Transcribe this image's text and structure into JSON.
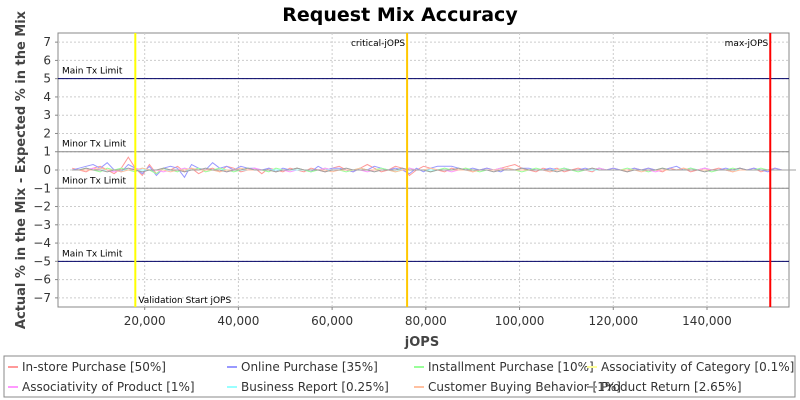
{
  "chart_data": {
    "type": "line",
    "title": "Request Mix Accuracy",
    "xlabel": "jOPS",
    "ylabel": "Actual % in the Mix - Expected % in the Mix",
    "xlim": [
      1500,
      157500
    ],
    "ylim": [
      -7.5,
      7.5
    ],
    "xticks": [
      20000,
      40000,
      60000,
      80000,
      100000,
      120000,
      140000
    ],
    "xtick_labels": [
      "20,000",
      "40,000",
      "60,000",
      "80,000",
      "100,000",
      "120,000",
      "140,000"
    ],
    "yticks": [
      7,
      6,
      5,
      4,
      3,
      2,
      1,
      0,
      -1,
      -2,
      -3,
      -4,
      -5,
      -6,
      -7
    ],
    "ytick_labels": [
      "7",
      "6",
      "5",
      "4",
      "3",
      "2",
      "1",
      "0",
      "−1",
      "−2",
      "−3",
      "−4",
      "−5",
      "−6",
      "−7"
    ],
    "grid": true,
    "legend_position": "bottom",
    "horizontal_lines": [
      {
        "label": "Main Tx Limit",
        "y": 5,
        "color": "#000066"
      },
      {
        "label": "Minor Tx Limit",
        "y": 1,
        "color": "#888888"
      },
      {
        "label": "Minor Tx Limit",
        "y": -1,
        "color": "#888888"
      },
      {
        "label": "Main Tx Limit",
        "y": -5,
        "color": "#000066"
      }
    ],
    "vertical_lines": [
      {
        "label": "Validation Start jOPS",
        "x": 18000,
        "color": "#ffff00"
      },
      {
        "label": "critical-jOPS",
        "x": 76000,
        "color": "#ffc800"
      },
      {
        "label": "max-jOPS",
        "x": 153500,
        "color": "#ff0000"
      }
    ],
    "x_start": 4500,
    "x_step": 1500,
    "series": [
      {
        "name": "In-store Purchase [50%]",
        "color": "#ff9999",
        "values": [
          0.1,
          0.0,
          -0.1,
          0.1,
          0.2,
          0.0,
          -0.2,
          0.1,
          0.7,
          0.1,
          -0.3,
          0.3,
          -0.2,
          0.1,
          0.0,
          0.2,
          -0.1,
          0.1,
          -0.2,
          0.0,
          0.1,
          -0.1,
          0.2,
          0.1,
          -0.1,
          0.0,
          0.1,
          -0.2,
          0.1,
          0.0,
          -0.1,
          0.1,
          0.0,
          -0.1,
          0.1,
          0.0,
          -0.1,
          0.1,
          0.2,
          0.0,
          -0.1,
          0.1,
          0.3,
          0.1,
          -0.1,
          0.0,
          0.2,
          0.1,
          -0.3,
          0.0,
          0.2,
          0.1,
          0.0,
          -0.1,
          0.1,
          0.0,
          0.1,
          -0.1,
          0.0,
          0.1,
          0.0,
          0.1,
          0.2,
          0.3,
          0.1,
          0.0,
          -0.1,
          0.1,
          0.0,
          0.1,
          -0.1,
          0.0,
          0.1,
          0.0,
          -0.1,
          0.1,
          0.0,
          0.1,
          0.0,
          -0.1,
          0.1,
          0.0,
          0.1,
          0.0,
          -0.1,
          0.1,
          0.0,
          0.1,
          -0.1,
          0.0,
          0.1,
          0.0,
          0.1,
          0.0,
          -0.1,
          0.1,
          0.0,
          0.1,
          -0.1,
          0.0,
          0.1,
          0.0,
          0.0
        ]
      },
      {
        "name": "Online Purchase [35%]",
        "color": "#9999ff",
        "values": [
          0.0,
          0.1,
          0.2,
          0.3,
          0.1,
          0.4,
          0.0,
          -0.1,
          0.3,
          0.1,
          -0.2,
          0.2,
          -0.3,
          0.1,
          0.2,
          0.1,
          -0.4,
          0.3,
          0.1,
          0.0,
          0.4,
          0.1,
          0.2,
          0.0,
          0.2,
          0.1,
          0.1,
          0.0,
          0.1,
          -0.1,
          0.1,
          0.0,
          0.1,
          0.0,
          -0.1,
          0.2,
          0.0,
          0.1,
          0.1,
          0.0,
          -0.1,
          0.1,
          0.0,
          0.2,
          0.1,
          0.0,
          0.1,
          0.0,
          -0.2,
          0.1,
          -0.1,
          0.1,
          0.2,
          0.2,
          0.2,
          0.1,
          0.0,
          0.1,
          0.0,
          0.1,
          0.0,
          -0.1,
          0.1,
          0.0,
          0.1,
          0.1,
          0.0,
          0.0,
          0.1,
          0.0,
          0.1,
          0.0,
          0.0,
          0.1,
          0.0,
          0.1,
          0.0,
          0.1,
          0.0,
          0.0,
          0.1,
          0.0,
          0.1,
          0.0,
          0.0,
          0.1,
          0.2,
          0.0,
          0.1,
          0.0,
          0.1,
          0.0,
          0.0,
          0.1,
          0.0,
          0.1,
          0.0,
          0.1,
          0.0,
          -0.1,
          0.1,
          0.0,
          0.0
        ]
      },
      {
        "name": "Installment Purchase [10%]",
        "color": "#99ff99",
        "values": [
          0.0,
          0.0,
          0.1,
          0.0,
          -0.1,
          0.1,
          0.0,
          0.1,
          0.0,
          -0.1,
          0.1,
          0.0,
          -0.2,
          0.1,
          0.0,
          -0.1,
          0.1,
          0.0,
          0.1,
          -0.1,
          0.0,
          0.1,
          0.0,
          -0.1,
          0.0,
          0.1,
          0.0,
          0.0,
          -0.1,
          0.1,
          0.0,
          0.0,
          0.1,
          0.0,
          -0.1,
          0.0,
          0.1,
          0.0,
          0.0,
          -0.1,
          0.0,
          0.1,
          0.0,
          0.0,
          0.1,
          0.0,
          -0.1,
          0.0,
          0.1,
          0.0,
          0.0,
          -0.1,
          0.0,
          0.1,
          0.0,
          0.0,
          0.1,
          0.0,
          -0.1,
          0.0,
          0.0,
          0.1,
          0.0,
          0.0,
          -0.1,
          0.0,
          0.1,
          0.0,
          0.0,
          0.0,
          0.1,
          0.0,
          -0.1,
          0.0,
          0.0,
          0.1,
          0.0,
          0.0,
          0.0,
          0.1,
          0.0,
          0.0,
          -0.1,
          0.0,
          0.1,
          0.0,
          0.0,
          0.0,
          0.1,
          0.0,
          0.0,
          -0.1,
          0.0,
          0.0,
          0.1,
          0.0,
          0.0,
          0.0,
          0.1,
          0.0,
          0.0,
          0.0,
          0.0
        ]
      },
      {
        "name": "Associativity of Category [0.1%]",
        "color": "#ffff99",
        "values": [
          0.0,
          0.0,
          0.0,
          0.0,
          0.0,
          0.0,
          0.0,
          0.0,
          0.0,
          0.0,
          0.0,
          0.0,
          0.0,
          0.0,
          0.0,
          0.0,
          0.0,
          0.0,
          0.0,
          0.0,
          0.0,
          0.0,
          0.0,
          0.0,
          0.0,
          0.0,
          0.0,
          0.0,
          0.0,
          0.0,
          0.0,
          0.0,
          0.0,
          0.0,
          0.0,
          0.0,
          0.0,
          0.0,
          0.0,
          0.0,
          0.0,
          0.0,
          0.0,
          0.0,
          0.0,
          0.0,
          0.0,
          0.0,
          0.0,
          0.0,
          0.0,
          0.0,
          0.0,
          0.0,
          0.0,
          0.0,
          0.0,
          0.0,
          0.0,
          0.0,
          0.0,
          0.0,
          0.0,
          0.0,
          0.0,
          0.0,
          0.0,
          0.0,
          0.0,
          0.0,
          0.0,
          0.0,
          0.0,
          0.0,
          0.0,
          0.0,
          0.0,
          0.0,
          0.0,
          0.0,
          0.0,
          0.0,
          0.0,
          0.0,
          0.0,
          0.0,
          0.0,
          0.0,
          0.0,
          0.0,
          0.0,
          0.0,
          0.0,
          0.0,
          0.0,
          0.0,
          0.0,
          0.0,
          0.0,
          0.0,
          0.0,
          0.0,
          0.0
        ]
      },
      {
        "name": "Associativity of Product [1%]",
        "color": "#ff99ff",
        "values": [
          0.0,
          0.0,
          0.0,
          0.1,
          0.0,
          0.0,
          -0.1,
          0.0,
          0.0,
          0.1,
          0.0,
          0.0,
          0.0,
          -0.1,
          0.0,
          0.0,
          0.1,
          0.0,
          0.0,
          0.0,
          0.0,
          0.0,
          -0.1,
          0.0,
          0.0,
          0.0,
          0.1,
          0.0,
          0.0,
          0.0,
          0.0,
          -0.1,
          0.0,
          0.0,
          0.0,
          0.0,
          0.1,
          0.0,
          0.0,
          0.0,
          0.0,
          0.0,
          -0.1,
          0.0,
          0.0,
          0.0,
          0.0,
          0.0,
          0.1,
          0.0,
          0.0,
          0.0,
          0.0,
          0.0,
          -0.1,
          0.0,
          0.0,
          0.0,
          0.0,
          0.0,
          0.0,
          0.1,
          0.0,
          0.0,
          0.0,
          0.0,
          0.0,
          0.0,
          -0.1,
          0.0,
          0.0,
          0.0,
          0.0,
          0.0,
          0.0,
          0.1,
          0.0,
          0.0,
          0.0,
          0.0,
          0.0,
          0.0,
          0.0,
          -0.1,
          0.0,
          0.0,
          0.0,
          0.0,
          0.0,
          0.0,
          0.1,
          0.0,
          0.0,
          0.0,
          0.0,
          0.0,
          0.0,
          0.0,
          0.0,
          0.0,
          0.0,
          0.0,
          0.0,
          0.0
        ]
      },
      {
        "name": "Business Report [0.25%]",
        "color": "#99ffff",
        "values": [
          0.0,
          0.0,
          0.0,
          0.0,
          0.0,
          0.0,
          0.0,
          0.0,
          0.0,
          0.0,
          0.0,
          0.0,
          0.0,
          0.0,
          0.0,
          0.0,
          0.0,
          0.0,
          0.0,
          0.0,
          0.0,
          0.0,
          0.0,
          0.0,
          0.0,
          0.0,
          0.0,
          0.0,
          0.0,
          0.0,
          0.0,
          0.0,
          0.0,
          0.0,
          0.0,
          0.0,
          0.0,
          0.0,
          0.0,
          0.0,
          0.0,
          0.0,
          0.0,
          0.0,
          0.0,
          0.0,
          0.0,
          0.0,
          0.0,
          0.0,
          0.0,
          0.0,
          0.0,
          0.0,
          0.0,
          0.0,
          0.0,
          0.0,
          0.0,
          0.0,
          0.0,
          0.0,
          0.0,
          0.0,
          0.0,
          0.0,
          0.0,
          0.0,
          0.0,
          0.0,
          0.0,
          0.0,
          0.0,
          0.0,
          0.0,
          0.0,
          0.0,
          0.0,
          0.0,
          0.0,
          0.0,
          0.0,
          0.0,
          0.0,
          0.0,
          0.0,
          0.0,
          0.0,
          0.0,
          0.0,
          0.0,
          0.0,
          0.0,
          0.0,
          0.0,
          0.0,
          0.0,
          0.0,
          0.0,
          0.0,
          0.0,
          0.0,
          0.0
        ]
      },
      {
        "name": "Customer Buying Behavior [1%]",
        "color": "#ffc0a0",
        "values": [
          0.0,
          0.0,
          0.0,
          0.0,
          0.1,
          0.0,
          0.0,
          -0.1,
          0.0,
          0.0,
          0.1,
          0.0,
          0.0,
          0.0,
          -0.1,
          0.0,
          0.0,
          0.1,
          0.0,
          0.0,
          0.0,
          -0.1,
          0.0,
          0.0,
          0.1,
          0.0,
          0.0,
          0.0,
          0.0,
          -0.1,
          0.0,
          0.0,
          0.1,
          0.0,
          0.0,
          0.0,
          0.0,
          -0.1,
          0.0,
          0.0,
          0.0,
          0.1,
          0.0,
          0.0,
          0.0,
          0.0,
          -0.1,
          0.0,
          0.0,
          0.0,
          0.0,
          0.1,
          0.0,
          0.0,
          0.0,
          0.0,
          0.0,
          -0.1,
          0.0,
          0.0,
          0.0,
          0.0,
          0.1,
          0.0,
          0.0,
          0.0,
          0.0,
          0.0,
          -0.1,
          0.0,
          0.0,
          0.0,
          0.0,
          0.0,
          0.1,
          0.0,
          0.0,
          0.0,
          0.0,
          0.0,
          0.0,
          -0.1,
          0.0,
          0.0,
          0.0,
          0.0,
          0.0,
          0.1,
          0.0,
          0.0,
          0.0,
          0.0,
          0.0,
          0.0,
          -0.1,
          0.0,
          0.0,
          0.0,
          0.0,
          0.0,
          0.0,
          0.0,
          0.0
        ]
      },
      {
        "name": "Product Return [2.65%]",
        "color": "#a0a0a0",
        "values": [
          0.0,
          0.0,
          0.1,
          0.0,
          0.0,
          -0.1,
          0.0,
          0.0,
          0.1,
          0.0,
          -0.1,
          0.0,
          0.0,
          0.1,
          0.0,
          0.0,
          -0.1,
          0.0,
          0.0,
          0.1,
          0.0,
          0.0,
          -0.1,
          0.0,
          0.0,
          0.1,
          0.0,
          0.0,
          0.0,
          -0.1,
          0.0,
          0.0,
          0.1,
          0.0,
          0.0,
          0.0,
          -0.1,
          0.0,
          0.0,
          0.1,
          0.0,
          0.0,
          0.0,
          -0.1,
          0.0,
          0.0,
          0.0,
          0.1,
          0.0,
          0.0,
          0.0,
          -0.1,
          0.0,
          0.0,
          0.0,
          0.1,
          0.0,
          0.0,
          0.0,
          0.0,
          -0.1,
          0.0,
          0.0,
          0.0,
          0.1,
          0.0,
          0.0,
          0.0,
          0.0,
          -0.1,
          0.0,
          0.0,
          0.0,
          0.0,
          0.1,
          0.0,
          0.0,
          0.0,
          0.0,
          -0.1,
          0.0,
          0.0,
          0.0,
          0.0,
          0.1,
          0.0,
          0.0,
          0.0,
          0.0,
          0.0,
          -0.1,
          0.0,
          0.0,
          0.0,
          0.0,
          0.1,
          0.0,
          0.0,
          0.0,
          0.0,
          0.0,
          0.0,
          0.0,
          0.0
        ]
      }
    ]
  }
}
